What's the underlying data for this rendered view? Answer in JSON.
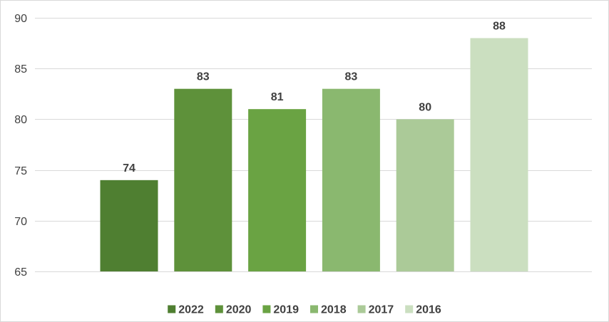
{
  "chart_data": {
    "type": "bar",
    "title": "",
    "xlabel": "",
    "ylabel": "",
    "ylim": [
      65,
      90
    ],
    "yticks": [
      65,
      70,
      75,
      80,
      85,
      90
    ],
    "grid": true,
    "legend_position": "bottom",
    "data_labels": true,
    "series": [
      {
        "name": "2022",
        "value": 74,
        "color": "#4f7f31"
      },
      {
        "name": "2020",
        "value": 83,
        "color": "#5e913a"
      },
      {
        "name": "2019",
        "value": 81,
        "color": "#6aa343"
      },
      {
        "name": "2018",
        "value": 83,
        "color": "#8ab86f"
      },
      {
        "name": "2017",
        "value": 80,
        "color": "#abca98"
      },
      {
        "name": "2016",
        "value": 88,
        "color": "#cbdfc0"
      }
    ]
  }
}
